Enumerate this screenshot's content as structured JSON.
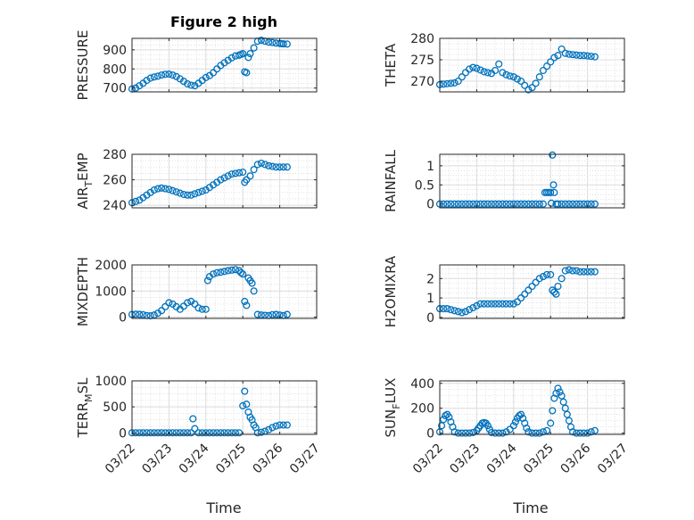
{
  "figure": {
    "title": "Figure 2 high",
    "xlabel": "Time"
  },
  "chart_data": [
    {
      "type": "scatter",
      "ylabel": "PRESSURE",
      "ylim": [
        680,
        960
      ],
      "yticks": [
        700,
        800,
        900
      ],
      "grid": true,
      "color": "#0072bd",
      "x": [
        22.0,
        22.1,
        22.2,
        22.3,
        22.4,
        22.5,
        22.6,
        22.7,
        22.8,
        22.9,
        23.0,
        23.1,
        23.2,
        23.3,
        23.4,
        23.5,
        23.6,
        23.7,
        23.8,
        23.9,
        24.0,
        24.1,
        24.2,
        24.3,
        24.4,
        24.5,
        24.6,
        24.7,
        24.8,
        24.9,
        24.95,
        25.0,
        25.05,
        25.1,
        25.15,
        25.2,
        25.3,
        25.4,
        25.5,
        25.6,
        25.7,
        25.8,
        25.9,
        26.0,
        26.05,
        26.1,
        26.2
      ],
      "y": [
        695,
        700,
        712,
        725,
        740,
        752,
        758,
        762,
        768,
        772,
        773,
        768,
        760,
        748,
        735,
        722,
        715,
        712,
        725,
        740,
        755,
        765,
        780,
        800,
        818,
        832,
        845,
        858,
        868,
        872,
        876,
        880,
        785,
        780,
        860,
        880,
        910,
        945,
        950,
        945,
        940,
        938,
        935,
        933,
        932,
        931,
        930
      ]
    },
    {
      "type": "scatter",
      "ylabel": "THETA",
      "ylim": [
        267.5,
        280
      ],
      "yticks": [
        270,
        275,
        280
      ],
      "grid": true,
      "color": "#0072bd",
      "x": [
        22.0,
        22.1,
        22.2,
        22.3,
        22.4,
        22.5,
        22.6,
        22.7,
        22.8,
        22.9,
        23.0,
        23.1,
        23.2,
        23.3,
        23.4,
        23.5,
        23.6,
        23.7,
        23.8,
        23.9,
        24.0,
        24.1,
        24.2,
        24.3,
        24.4,
        24.5,
        24.6,
        24.7,
        24.8,
        24.9,
        25.0,
        25.1,
        25.2,
        25.3,
        25.4,
        25.5,
        25.6,
        25.7,
        25.8,
        25.9,
        26.0,
        26.1,
        26.2
      ],
      "y": [
        269.2,
        269.3,
        269.4,
        269.5,
        269.6,
        270.0,
        271.0,
        272.0,
        272.8,
        273.2,
        273.0,
        272.6,
        272.2,
        272.0,
        271.8,
        272.5,
        274.0,
        272.0,
        271.5,
        271.2,
        271.0,
        270.5,
        270.0,
        269.0,
        268.0,
        268.5,
        269.5,
        271.0,
        272.5,
        273.5,
        274.5,
        275.5,
        276.0,
        277.5,
        276.5,
        276.3,
        276.2,
        276.1,
        276.0,
        276.0,
        275.9,
        275.8,
        275.7
      ]
    },
    {
      "type": "scatter",
      "ylabel": "AIR_TEMP",
      "ylim": [
        238,
        280
      ],
      "yticks": [
        240,
        260,
        280
      ],
      "grid": true,
      "color": "#0072bd",
      "x": [
        22.0,
        22.1,
        22.2,
        22.3,
        22.4,
        22.5,
        22.6,
        22.7,
        22.8,
        22.9,
        23.0,
        23.1,
        23.2,
        23.3,
        23.4,
        23.5,
        23.6,
        23.7,
        23.8,
        23.9,
        24.0,
        24.1,
        24.2,
        24.3,
        24.4,
        24.5,
        24.6,
        24.7,
        24.8,
        24.9,
        25.0,
        25.05,
        25.1,
        25.2,
        25.3,
        25.4,
        25.5,
        25.6,
        25.7,
        25.8,
        25.9,
        26.0,
        26.1,
        26.2
      ],
      "y": [
        242,
        243,
        244,
        246,
        248,
        250,
        252,
        253,
        253.5,
        253,
        252.5,
        251.5,
        250.5,
        249.5,
        248.5,
        248,
        248,
        249,
        250,
        251,
        252,
        254,
        256,
        258,
        260,
        261.5,
        263,
        264.5,
        265,
        265.5,
        266,
        258,
        260,
        263,
        268,
        272,
        273,
        272,
        271,
        270.5,
        270,
        270,
        270,
        270
      ]
    },
    {
      "type": "scatter",
      "ylabel": "RAINFALL",
      "ylim": [
        -0.1,
        1.3
      ],
      "yticks": [
        0,
        0.5,
        1
      ],
      "grid": true,
      "color": "#0072bd",
      "x": [
        22.0,
        22.1,
        22.2,
        22.3,
        22.4,
        22.5,
        22.6,
        22.7,
        22.8,
        22.9,
        23.0,
        23.1,
        23.2,
        23.3,
        23.4,
        23.5,
        23.6,
        23.7,
        23.8,
        23.9,
        24.0,
        24.1,
        24.2,
        24.3,
        24.4,
        24.5,
        24.6,
        24.7,
        24.8,
        24.85,
        24.9,
        24.95,
        25.0,
        25.02,
        25.05,
        25.08,
        25.1,
        25.15,
        25.2,
        25.3,
        25.4,
        25.5,
        25.6,
        25.7,
        25.8,
        25.9,
        26.0,
        26.1,
        26.2
      ],
      "y": [
        0,
        0,
        0,
        0,
        0,
        0,
        0,
        0,
        0,
        0,
        0,
        0,
        0,
        0,
        0,
        0,
        0,
        0,
        0,
        0,
        0,
        0,
        0,
        0,
        0,
        0,
        0,
        0,
        0,
        0.3,
        0.3,
        0.3,
        0.3,
        0.02,
        1.28,
        0.5,
        0.3,
        0,
        0,
        0,
        0,
        0,
        0,
        0,
        0,
        0,
        0,
        0,
        0
      ]
    },
    {
      "type": "scatter",
      "ylabel": "MIXDEPTH",
      "ylim": [
        -50,
        2000
      ],
      "yticks": [
        0,
        1000,
        2000
      ],
      "grid": true,
      "color": "#0072bd",
      "x": [
        22.0,
        22.1,
        22.2,
        22.3,
        22.4,
        22.5,
        22.6,
        22.7,
        22.8,
        22.9,
        23.0,
        23.1,
        23.2,
        23.3,
        23.4,
        23.5,
        23.6,
        23.7,
        23.8,
        23.9,
        24.0,
        24.05,
        24.1,
        24.2,
        24.3,
        24.4,
        24.5,
        24.6,
        24.7,
        24.8,
        24.9,
        24.95,
        25.0,
        25.05,
        25.1,
        25.15,
        25.2,
        25.25,
        25.3,
        25.4,
        25.5,
        25.6,
        25.7,
        25.8,
        25.9,
        26.0,
        26.1,
        26.2
      ],
      "y": [
        100,
        110,
        105,
        90,
        60,
        50,
        80,
        150,
        250,
        400,
        550,
        500,
        400,
        300,
        420,
        550,
        600,
        500,
        350,
        300,
        300,
        1400,
        1550,
        1650,
        1700,
        1720,
        1750,
        1780,
        1800,
        1820,
        1780,
        1700,
        1650,
        600,
        450,
        1500,
        1400,
        1300,
        1000,
        100,
        80,
        70,
        60,
        90,
        100,
        80,
        60,
        100
      ]
    },
    {
      "type": "scatter",
      "ylabel": "H2OMIXRA",
      "ylim": [
        -0.05,
        2.7
      ],
      "yticks": [
        0,
        1,
        2
      ],
      "grid": true,
      "color": "#0072bd",
      "x": [
        22.0,
        22.1,
        22.2,
        22.3,
        22.4,
        22.5,
        22.6,
        22.7,
        22.8,
        22.9,
        23.0,
        23.1,
        23.2,
        23.3,
        23.4,
        23.5,
        23.6,
        23.7,
        23.8,
        23.9,
        24.0,
        24.1,
        24.2,
        24.3,
        24.4,
        24.5,
        24.6,
        24.7,
        24.8,
        24.9,
        25.0,
        25.05,
        25.1,
        25.15,
        25.2,
        25.3,
        25.4,
        25.5,
        25.6,
        25.7,
        25.8,
        25.9,
        26.0,
        26.1,
        26.2
      ],
      "y": [
        0.45,
        0.45,
        0.45,
        0.4,
        0.35,
        0.3,
        0.25,
        0.3,
        0.4,
        0.5,
        0.6,
        0.7,
        0.7,
        0.7,
        0.7,
        0.7,
        0.7,
        0.7,
        0.7,
        0.7,
        0.7,
        0.8,
        1.0,
        1.2,
        1.4,
        1.6,
        1.8,
        2.0,
        2.1,
        2.2,
        2.2,
        1.4,
        1.3,
        1.2,
        1.6,
        2.0,
        2.4,
        2.45,
        2.4,
        2.4,
        2.35,
        2.35,
        2.35,
        2.35,
        2.35
      ]
    },
    {
      "type": "scatter",
      "ylabel": "TERR_MSL",
      "ylim": [
        -30,
        1000
      ],
      "yticks": [
        0,
        500,
        1000
      ],
      "xticklabels": [
        "03/22",
        "03/23",
        "03/24",
        "03/25",
        "03/26",
        "03/27"
      ],
      "xlim": [
        22,
        27
      ],
      "grid": true,
      "color": "#0072bd",
      "x": [
        22.0,
        22.1,
        22.2,
        22.3,
        22.4,
        22.5,
        22.6,
        22.7,
        22.8,
        22.9,
        23.0,
        23.1,
        23.2,
        23.3,
        23.4,
        23.5,
        23.6,
        23.65,
        23.7,
        23.8,
        23.9,
        24.0,
        24.1,
        24.2,
        24.3,
        24.4,
        24.5,
        24.6,
        24.7,
        24.8,
        24.9,
        25.0,
        25.05,
        25.1,
        25.15,
        25.2,
        25.25,
        25.3,
        25.35,
        25.4,
        25.5,
        25.6,
        25.7,
        25.8,
        25.9,
        26.0,
        26.1,
        26.2
      ],
      "y": [
        0,
        0,
        0,
        0,
        0,
        0,
        0,
        0,
        0,
        0,
        0,
        0,
        0,
        0,
        0,
        0,
        0,
        270,
        80,
        0,
        0,
        0,
        0,
        0,
        0,
        0,
        0,
        0,
        0,
        0,
        0,
        520,
        800,
        550,
        400,
        300,
        250,
        150,
        100,
        0,
        10,
        30,
        60,
        100,
        130,
        150,
        150,
        150
      ]
    },
    {
      "type": "scatter",
      "ylabel": "SUN_FLUX",
      "ylim": [
        -10,
        420
      ],
      "yticks": [
        0,
        200,
        400
      ],
      "xticklabels": [
        "03/22",
        "03/23",
        "03/24",
        "03/25",
        "03/26",
        "03/27"
      ],
      "xlim": [
        22,
        27
      ],
      "grid": true,
      "color": "#0072bd",
      "x": [
        22.0,
        22.05,
        22.1,
        22.15,
        22.2,
        22.25,
        22.3,
        22.35,
        22.4,
        22.5,
        22.6,
        22.7,
        22.8,
        22.9,
        23.0,
        23.05,
        23.1,
        23.15,
        23.2,
        23.25,
        23.3,
        23.35,
        23.4,
        23.5,
        23.6,
        23.7,
        23.8,
        23.9,
        24.0,
        24.05,
        24.1,
        24.15,
        24.2,
        24.25,
        24.3,
        24.35,
        24.4,
        24.5,
        24.6,
        24.7,
        24.8,
        24.9,
        25.0,
        25.05,
        25.1,
        25.15,
        25.2,
        25.25,
        25.3,
        25.35,
        25.4,
        25.45,
        25.5,
        25.55,
        25.6,
        25.7,
        25.8,
        25.9,
        26.0,
        26.1,
        26.2
      ],
      "y": [
        10,
        60,
        110,
        140,
        150,
        130,
        90,
        50,
        10,
        0,
        0,
        0,
        0,
        5,
        20,
        40,
        60,
        80,
        85,
        80,
        60,
        30,
        5,
        0,
        0,
        0,
        10,
        30,
        60,
        90,
        120,
        140,
        150,
        120,
        80,
        40,
        10,
        0,
        0,
        0,
        10,
        20,
        80,
        180,
        280,
        320,
        360,
        330,
        300,
        250,
        200,
        150,
        100,
        50,
        10,
        0,
        0,
        0,
        0,
        10,
        20
      ]
    }
  ]
}
